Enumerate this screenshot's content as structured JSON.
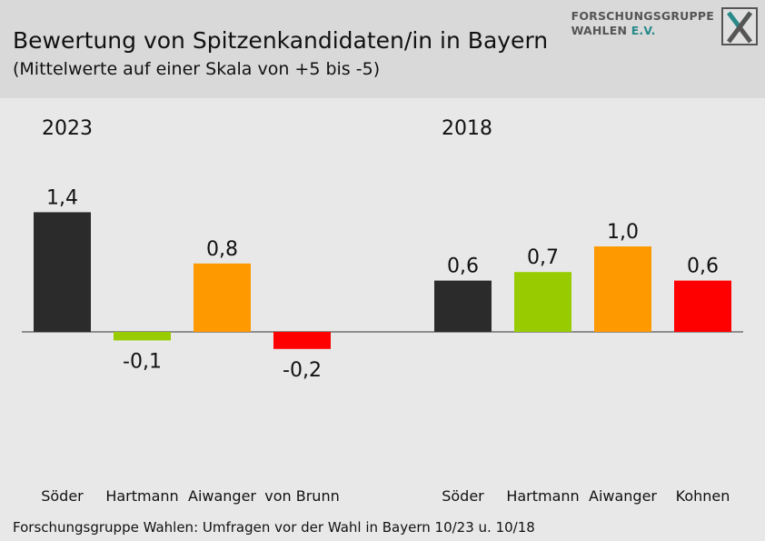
{
  "header": {
    "title": "Bewertung von Spitzenkandidaten/in in Bayern",
    "subtitle": "(Mittelwerte auf einer Skala von +5 bis -5)"
  },
  "logo": {
    "line1": "FORSCHUNGSGRUPPE",
    "line2": "WAHLEN",
    "line2_suffix": "E.V."
  },
  "footer": {
    "source": "Forschungsgruppe Wahlen: Umfragen vor der Wahl in Bayern 10/23 u. 10/18"
  },
  "chart_data": [
    {
      "type": "bar",
      "title": "2023",
      "categories": [
        "Söder",
        "Hartmann",
        "Aiwanger",
        "von Brunn"
      ],
      "values": [
        1.4,
        -0.1,
        0.8,
        -0.2
      ],
      "value_labels": [
        "1,4",
        "-0,1",
        "0,8",
        "-0,2"
      ],
      "colors": [
        "#2b2b2b",
        "#99cc00",
        "#ff9900",
        "#ff0000"
      ],
      "ylim": [
        -5,
        5
      ],
      "grid": false
    },
    {
      "type": "bar",
      "title": "2018",
      "categories": [
        "Söder",
        "Hartmann",
        "Aiwanger",
        "Kohnen"
      ],
      "values": [
        0.6,
        0.7,
        1.0,
        0.6
      ],
      "value_labels": [
        "0,6",
        "0,7",
        "1,0",
        "0,6"
      ],
      "colors": [
        "#2b2b2b",
        "#99cc00",
        "#ff9900",
        "#ff0000"
      ],
      "ylim": [
        -5,
        5
      ],
      "grid": false
    }
  ]
}
